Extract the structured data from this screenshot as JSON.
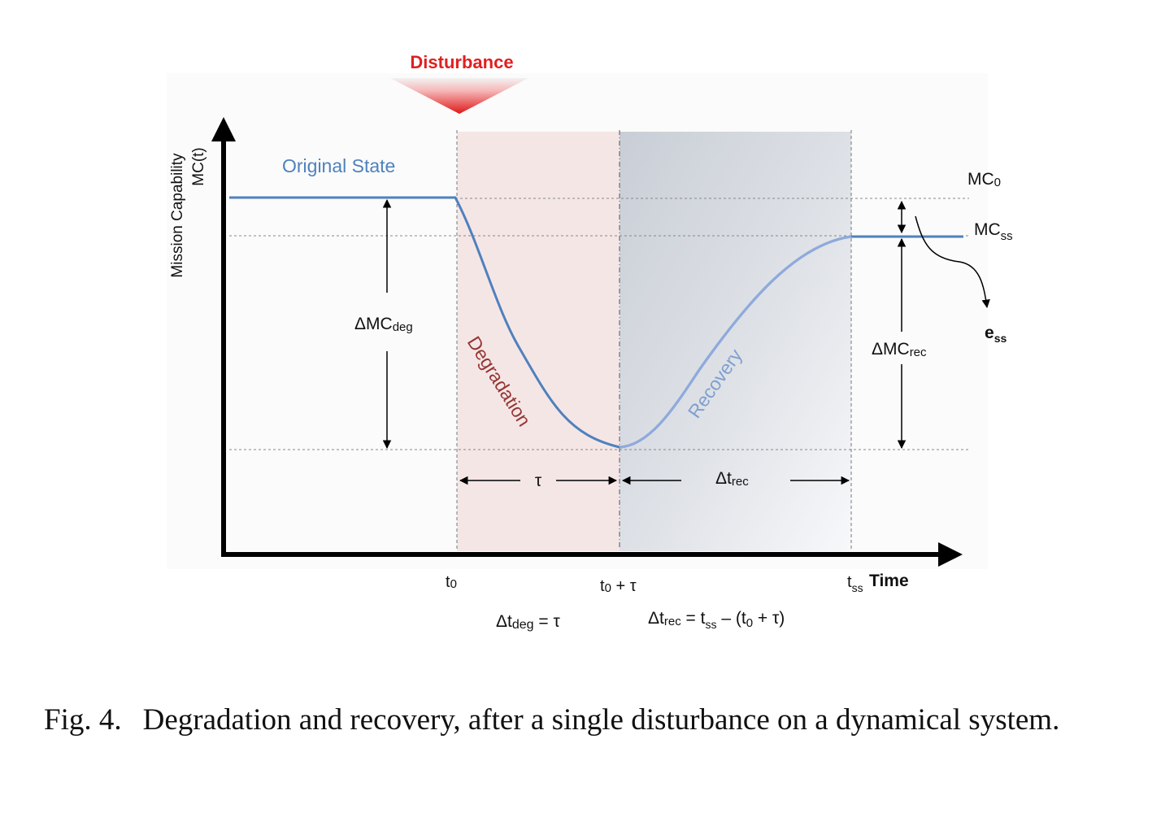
{
  "diagram": {
    "disturbance_label": "Disturbance",
    "y_axis_label_line1": "Mission Capability",
    "y_axis_label_line2": "MC(t)",
    "x_axis_label": "Time",
    "original_state_label": "Original State",
    "degradation_label": "Degradation",
    "recovery_label": "Recovery",
    "mc0_main": "MC",
    "mc0_sub": "0",
    "mcss_main": "MC",
    "mcss_sub": "ss",
    "ess_main": "e",
    "ess_sub": "ss",
    "dmc_deg_main": "ΔMC",
    "dmc_deg_sub": "deg",
    "dmc_rec_main": "ΔMC",
    "dmc_rec_sub": "rec",
    "tau_label": "τ",
    "dt_rec_main": "Δt",
    "dt_rec_sub": "rec",
    "t0_main": "t",
    "t0_sub": "0",
    "t0tau_main": "t",
    "t0tau_sub": "0",
    "t0tau_rest": " + τ",
    "tss_main": "t",
    "tss_sub": "ss",
    "eq_deg_main": "Δt",
    "eq_deg_sub": "deg",
    "eq_deg_rest": " = τ",
    "eq_rec_main": "Δt",
    "eq_rec_sub": "rec",
    "eq_rec_mid1": " = t",
    "eq_rec_sub2": "ss",
    "eq_rec_mid2": " – (t",
    "eq_rec_sub3": "0",
    "eq_rec_end": " + τ)"
  },
  "caption": {
    "label": "Fig. 4.",
    "text": "Degradation and recovery, after a single disturbance on a dynamical system."
  },
  "colors": {
    "curve": "#4f81bd",
    "degradation_text": "#943634",
    "recovery_text": "#7f9fcf",
    "degradation_fill": "#f4e4e4",
    "disturbance_red": "#e02020"
  }
}
